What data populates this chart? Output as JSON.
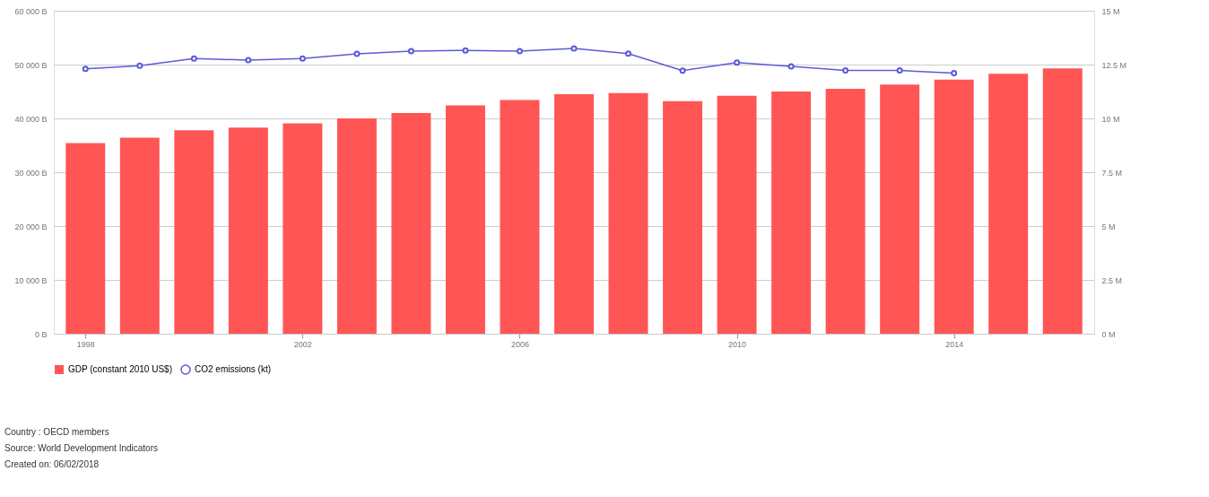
{
  "chart_data": {
    "type": "bar",
    "x": [
      1998,
      1999,
      2000,
      2001,
      2002,
      2003,
      2004,
      2005,
      2006,
      2007,
      2008,
      2009,
      2010,
      2011,
      2012,
      2013,
      2014,
      2015,
      2016
    ],
    "series": [
      {
        "name": "GDP (constant 2010 US$)",
        "color": "#ff5555",
        "values": [
          35400,
          36400,
          37800,
          38300,
          39100,
          40000,
          41000,
          42400,
          43400,
          44500,
          44700,
          43200,
          44200,
          45000,
          45500,
          46300,
          47200,
          48300,
          49300
        ]
      },
      {
        "name": "CO2 emissions (kt)",
        "type": "line",
        "axis": "y2",
        "color": "#5b5bd6",
        "values": [
          12300000,
          12450000,
          12780000,
          12710000,
          12780000,
          13000000,
          13130000,
          13160000,
          13130000,
          13250000,
          13010000,
          12220000,
          12590000,
          12420000,
          12230000,
          12230000,
          12100000,
          null,
          null
        ]
      }
    ],
    "xlim": [
      1997.5,
      2016.5
    ],
    "xticks": [
      1998,
      2002,
      2006,
      2010,
      2014
    ],
    "ylim": [
      0,
      60000
    ],
    "yticks": [
      {
        "value": 0,
        "label": "0 B"
      },
      {
        "value": 10000,
        "label": "10 000 B"
      },
      {
        "value": 20000,
        "label": "20 000 B"
      },
      {
        "value": 30000,
        "label": "30 000 B"
      },
      {
        "value": 40000,
        "label": "40 000 B"
      },
      {
        "value": 50000,
        "label": "50 000 B"
      },
      {
        "value": 60000,
        "label": "60 000 B"
      }
    ],
    "y2lim": [
      0,
      15000000
    ],
    "y2ticks": [
      {
        "value": 0,
        "label": "0 M"
      },
      {
        "value": 2500000,
        "label": "2.5 M"
      },
      {
        "value": 5000000,
        "label": "5 M"
      },
      {
        "value": 7500000,
        "label": "7.5 M"
      },
      {
        "value": 10000000,
        "label": "10 M"
      },
      {
        "value": 12500000,
        "label": "12.5 M"
      },
      {
        "value": 15000000,
        "label": "15 M"
      }
    ],
    "grid": "y",
    "legend": "bottom",
    "marker": "circle",
    "annotations": [
      "Country : OECD members",
      "Source: World Development Indicators",
      "Created on: 06/02/2018"
    ]
  }
}
